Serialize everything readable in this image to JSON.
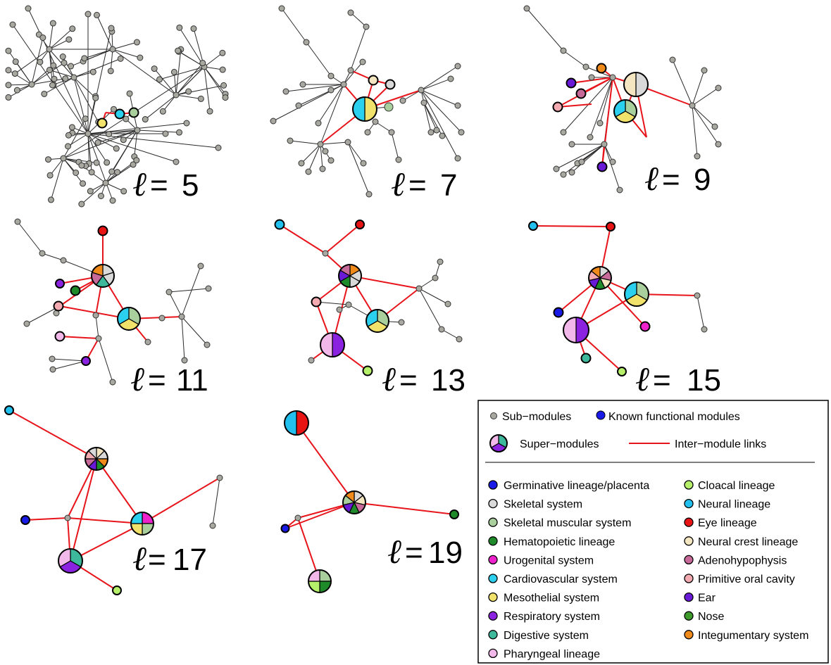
{
  "panels": [
    {
      "label_symbol": "ℓ",
      "label_eq": "=",
      "label_value": "5"
    },
    {
      "label_symbol": "ℓ",
      "label_eq": "=",
      "label_value": "7"
    },
    {
      "label_symbol": "ℓ",
      "label_eq": "=",
      "label_value": "9"
    },
    {
      "label_symbol": "ℓ",
      "label_eq": "=",
      "label_value": "11"
    },
    {
      "label_symbol": "ℓ",
      "label_eq": "=",
      "label_value": "13"
    },
    {
      "label_symbol": "ℓ",
      "label_eq": "=",
      "label_value": "15"
    },
    {
      "label_symbol": "ℓ",
      "label_eq": "=",
      "label_value": "17"
    },
    {
      "label_symbol": "ℓ",
      "label_eq": "=",
      "label_value": "19"
    }
  ],
  "legend": {
    "sub_modules": "Sub−modules",
    "known_modules": "Known functional modules",
    "super_modules": "Super−modules",
    "inter_links": "Inter−module links",
    "left_items": [
      {
        "label": "Germinative lineage/placenta",
        "color": "#1a1ae6"
      },
      {
        "label": "Skeletal system",
        "color": "#d9d9d9"
      },
      {
        "label": "Skeletal muscular system",
        "color": "#a9cf9c"
      },
      {
        "label": "Hematopoietic lineage",
        "color": "#1e8a2a"
      },
      {
        "label": "Urogenital system",
        "color": "#ee22cc"
      },
      {
        "label": "Cardiovascular system",
        "color": "#2bd0ee"
      },
      {
        "label": "Mesothelial system",
        "color": "#f0e26a"
      },
      {
        "label": "Respiratory system",
        "color": "#8a22e0"
      },
      {
        "label": "Digestive system",
        "color": "#3db89a"
      },
      {
        "label": "Pharyngeal lineage",
        "color": "#f2b8ea"
      }
    ],
    "right_items": [
      {
        "label": "Cloacal lineage",
        "color": "#b6f06a"
      },
      {
        "label": "Neural lineage",
        "color": "#22c0ee"
      },
      {
        "label": "Eye lineage",
        "color": "#e81414"
      },
      {
        "label": "Neural crest lineage",
        "color": "#f5e6c2"
      },
      {
        "label": "Adenohypophysis",
        "color": "#c76a9a"
      },
      {
        "label": "Primitive oral cavity",
        "color": "#f3aab0"
      },
      {
        "label": "Ear",
        "color": "#6a1ad6"
      },
      {
        "label": "Nose",
        "color": "#3e9a2a"
      },
      {
        "label": "Integumentary system",
        "color": "#f08a1a"
      }
    ]
  },
  "colors": {
    "sub_module": "#a8a8a0",
    "known_module_sample": "#1a1ae6",
    "inter_link": "#e8141b",
    "super_module_sample": [
      "#3db89a",
      "#8a22e0",
      "#f2b8ea"
    ]
  }
}
